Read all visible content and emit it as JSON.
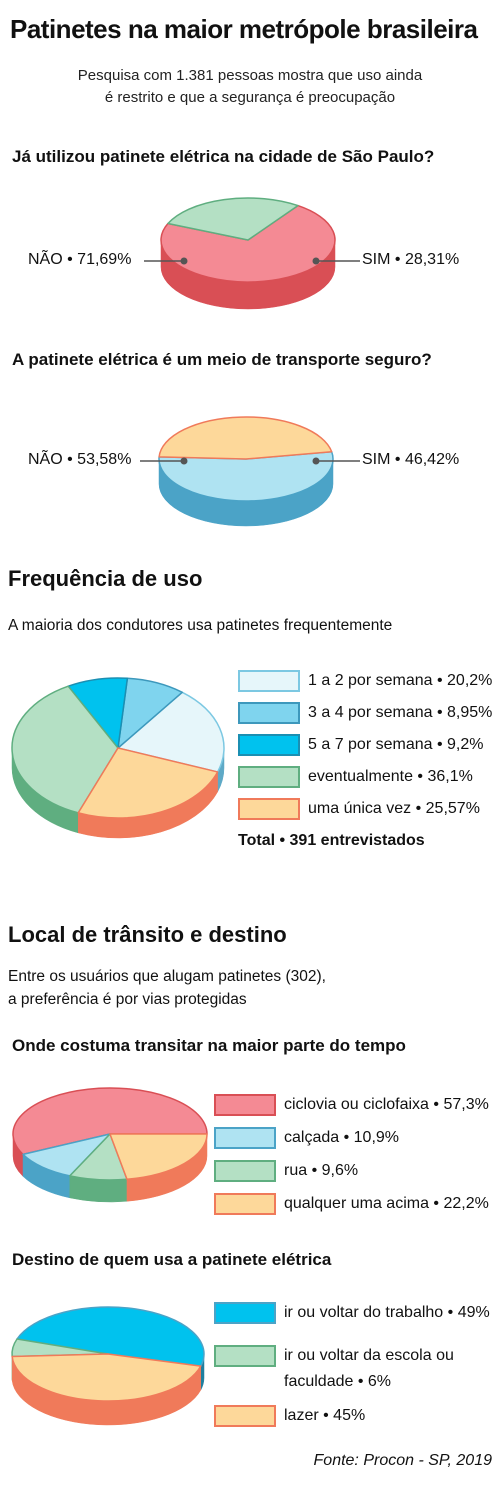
{
  "header": {
    "title": "Patinetes na maior metrópole brasileira",
    "subtitle_line1": "Pesquisa com 1.381 pessoas mostra que uso ainda",
    "subtitle_line2": "é restrito e que a segurança é preocupação"
  },
  "section_transito": {
    "title": "Local de trânsito e destino",
    "intro_line1": "Entre os usuários que alugam patinetes (302),",
    "intro_line2": "a preferência é por vias protegidas"
  },
  "section_frequencia": {
    "title": "Frequência de uso",
    "intro": "A maioria dos condutores usa patinetes frequentemente",
    "total": "Total • 391 entrevistados"
  },
  "source": "Fonte: Procon - SP, 2019",
  "colors": {
    "red": "#f48a94",
    "red_dark": "#d94f55",
    "green": "#b4e0c4",
    "green_dark": "#5fae80",
    "lightblue": "#afe3f2",
    "lightblue_dark": "#4ba3c7",
    "yellow": "#fdd89a",
    "orange_dark": "#f07a5a",
    "paleblue": "#e6f6fa",
    "paleblue_dark": "#5ea9c6",
    "midblue": "#7fd4ee",
    "midblue_dark": "#3d98bc",
    "cyan": "#00c2ee",
    "cyan_dark": "#1b8fb2"
  },
  "chart_data": [
    {
      "type": "pie",
      "title": "Já utilizou patinete elétrica na cidade de São Paulo?",
      "labels_printed": [
        "NÃO • 71,69%",
        "SIM • 28,31%"
      ],
      "slices": [
        {
          "name": "NÃO",
          "value": 71.69,
          "color": "#f48a94",
          "side": "#d94f55"
        },
        {
          "name": "SIM",
          "value": 28.31,
          "color": "#b4e0c4",
          "side": "#5fae80"
        }
      ]
    },
    {
      "type": "pie",
      "title": "A patinete elétrica é um meio de transporte seguro?",
      "labels_printed": [
        "NÃO • 53,58%",
        "SIM • 46,42%"
      ],
      "slices": [
        {
          "name": "NÃO",
          "value": 53.58,
          "color": "#afe3f2",
          "side": "#4ba3c7"
        },
        {
          "name": "SIM",
          "value": 46.42,
          "color": "#fdd89a",
          "side": "#f07a5a"
        }
      ]
    },
    {
      "type": "pie",
      "title": "Frequência de uso",
      "legend": [
        "1 a 2 por semana • 20,2%",
        "3 a 4 por semana • 8,95%",
        "5 a 7 por semana • 9,2%",
        "eventualmente • 36,1%",
        "uma única vez • 25,57%"
      ],
      "slices": [
        {
          "name": "1 a 2 por semana",
          "value": 20.2,
          "color": "#e6f6fa",
          "side": "#5ea9c6",
          "border": "#7cc8e2"
        },
        {
          "name": "3 a 4 por semana",
          "value": 8.95,
          "color": "#7fd4ee",
          "side": "#3d98bc",
          "border": "#3d98bc"
        },
        {
          "name": "5 a 7 por semana",
          "value": 9.2,
          "color": "#00c2ee",
          "side": "#1b8fb2",
          "border": "#1b8fb2"
        },
        {
          "name": "eventualmente",
          "value": 36.1,
          "color": "#b4e0c4",
          "side": "#5fae80",
          "border": "#5fae80"
        },
        {
          "name": "uma única vez",
          "value": 25.57,
          "color": "#fdd89a",
          "side": "#f07a5a",
          "border": "#f07a5a"
        }
      ]
    },
    {
      "type": "pie",
      "title": "Onde costuma transitar na maior parte do tempo",
      "legend": [
        "ciclovia ou ciclofaixa • 57,3%",
        "calçada • 10,9%",
        "rua • 9,6%",
        "qualquer uma acima • 22,2%"
      ],
      "slices": [
        {
          "name": "ciclovia ou ciclofaixa",
          "value": 57.3,
          "color": "#f48a94",
          "side": "#d94f55",
          "border": "#d94f55"
        },
        {
          "name": "calçada",
          "value": 10.9,
          "color": "#afe3f2",
          "side": "#4ba3c7",
          "border": "#4ba3c7"
        },
        {
          "name": "rua",
          "value": 9.6,
          "color": "#b4e0c4",
          "side": "#5fae80",
          "border": "#5fae80"
        },
        {
          "name": "qualquer uma acima",
          "value": 22.2,
          "color": "#fdd89a",
          "side": "#f07a5a",
          "border": "#f07a5a"
        }
      ]
    },
    {
      "type": "pie",
      "title": "Destino de quem usa a patinete elétrica",
      "legend": [
        "ir ou voltar do trabalho • 49%",
        "ir ou voltar da escola ou",
        "faculdade • 6%",
        "lazer • 45%"
      ],
      "slices": [
        {
          "name": "ir ou voltar do trabalho",
          "value": 49,
          "color": "#00c2ee",
          "side": "#1f7f9f",
          "border": "#4ba3c7"
        },
        {
          "name": "ir ou voltar da escola ou faculdade",
          "value": 6,
          "color": "#b4e0c4",
          "side": "#5fae80",
          "border": "#5fae80"
        },
        {
          "name": "lazer",
          "value": 45,
          "color": "#fdd89a",
          "side": "#f07a5a",
          "border": "#f07a5a"
        }
      ]
    }
  ]
}
